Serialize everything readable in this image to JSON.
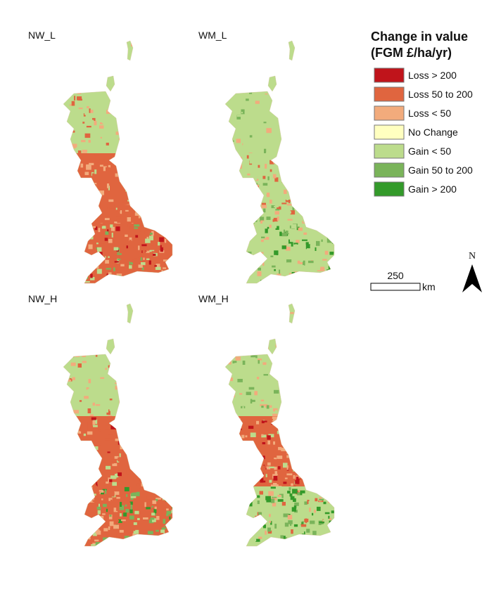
{
  "panels": [
    {
      "label": "NW_L"
    },
    {
      "label": "WM_L"
    },
    {
      "label": "NW_H"
    },
    {
      "label": "WM_H"
    }
  ],
  "legend": {
    "title": [
      "Change in value",
      "(FGM £/ha/yr)"
    ],
    "items": [
      {
        "label": "Loss > 200",
        "color": "#c0141b"
      },
      {
        "label": "Loss 50 to 200",
        "color": "#e0653f"
      },
      {
        "label": "Loss < 50",
        "color": "#f2ab7c"
      },
      {
        "label": "No Change",
        "color": "#ffffc0"
      },
      {
        "label": "Gain < 50",
        "color": "#bcdc8c"
      },
      {
        "label": "Gain 50 to 200",
        "color": "#7ab45a"
      },
      {
        "label": "Gain > 200",
        "color": "#339a2a"
      }
    ]
  },
  "scale_bar": {
    "label": "250",
    "unit": "km"
  },
  "north_arrow": {
    "label": "N"
  }
}
